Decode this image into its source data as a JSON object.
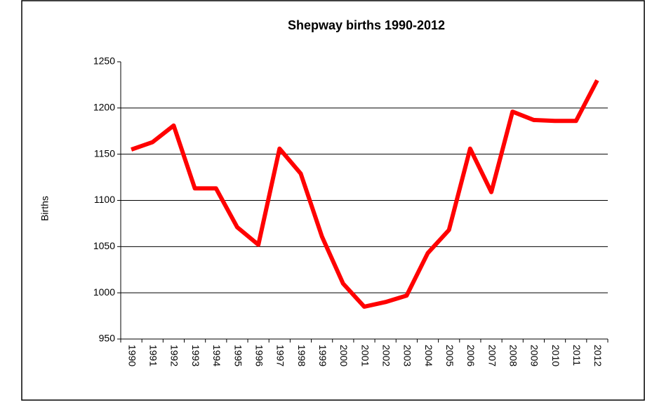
{
  "chart_data": {
    "type": "line",
    "title": "Shepway births 1990-2012",
    "y_label": "Births",
    "categories": [
      "1990",
      "1991",
      "1992",
      "1993",
      "1994",
      "1995",
      "1996",
      "1997",
      "1998",
      "1999",
      "2000",
      "2001",
      "2002",
      "2003",
      "2004",
      "2005",
      "2006",
      "2007",
      "2008",
      "2009",
      "2010",
      "2011",
      "2012"
    ],
    "series": [
      {
        "name": "Births",
        "color": "#ff0000",
        "values": [
          1155,
          1163,
          1181,
          1113,
          1113,
          1071,
          1052,
          1156,
          1129,
          1061,
          1010,
          985,
          990,
          997,
          1043,
          1068,
          1156,
          1109,
          1196,
          1187,
          1186,
          1186,
          1230
        ]
      }
    ],
    "ylim": [
      950,
      1250
    ],
    "yticks": [
      950,
      1000,
      1050,
      1100,
      1150,
      1200,
      1250
    ],
    "grid": true
  }
}
